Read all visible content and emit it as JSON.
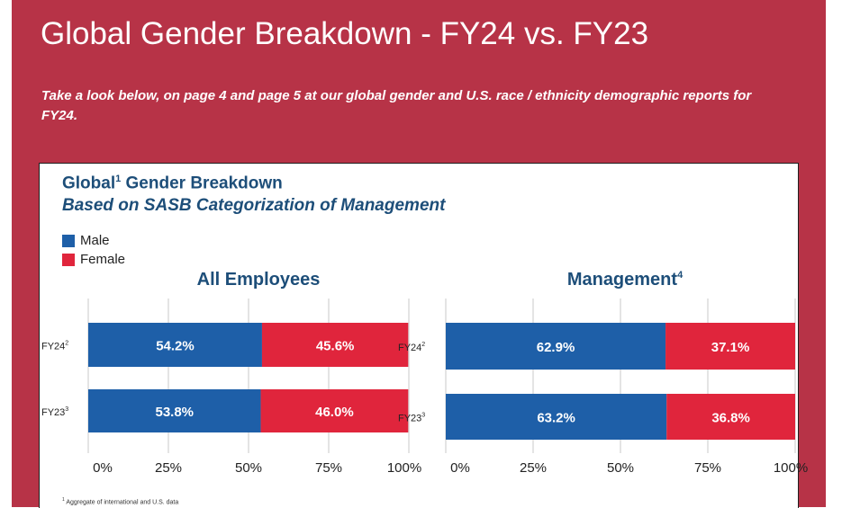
{
  "page": {
    "title": "Global Gender Breakdown - FY24 vs. FY23",
    "intro": "Take a look below, on page 4 and page 5 at our global gender and U.S. race / ethnicity demographic reports for FY24."
  },
  "card": {
    "title": "Global",
    "title_sup": "1",
    "title_rest": " Gender Breakdown",
    "subtitle": "Based on SASB Categorization of Management",
    "footnote_sup": "1",
    "footnote": " Aggregate of international and U.S. data"
  },
  "colors": {
    "male": "#1e5fa8",
    "female": "#e0253c",
    "panel": "#b73347",
    "title": "#1d4e79"
  },
  "chart_data": [
    {
      "type": "bar",
      "orientation": "horizontal",
      "stacked": true,
      "title": "All Employees",
      "title_sup": "",
      "categories": [
        "FY24",
        "FY23"
      ],
      "category_sups": [
        "2",
        "3"
      ],
      "series": [
        {
          "name": "Male",
          "values": [
            54.2,
            53.8
          ]
        },
        {
          "name": "Female",
          "values": [
            45.6,
            46.0
          ]
        }
      ],
      "data_labels": [
        [
          "54.2%",
          "53.8%"
        ],
        [
          "45.6%",
          "46.0%"
        ]
      ],
      "xlim": [
        0,
        100
      ],
      "xticks": [
        "0%",
        "25%",
        "50%",
        "75%",
        "100%"
      ],
      "grid": true,
      "legend": "top-left"
    },
    {
      "type": "bar",
      "orientation": "horizontal",
      "stacked": true,
      "title": "Management",
      "title_sup": "4",
      "categories": [
        "FY24",
        "FY23"
      ],
      "category_sups": [
        "2",
        "3"
      ],
      "series": [
        {
          "name": "Male",
          "values": [
            62.9,
            63.2
          ]
        },
        {
          "name": "Female",
          "values": [
            37.1,
            36.8
          ]
        }
      ],
      "data_labels": [
        [
          "62.9%",
          "63.2%"
        ],
        [
          "37.1%",
          "36.8%"
        ]
      ],
      "xlim": [
        0,
        100
      ],
      "xticks": [
        "0%",
        "25%",
        "50%",
        "75%",
        "100%"
      ],
      "grid": true,
      "legend": "top-left"
    }
  ]
}
